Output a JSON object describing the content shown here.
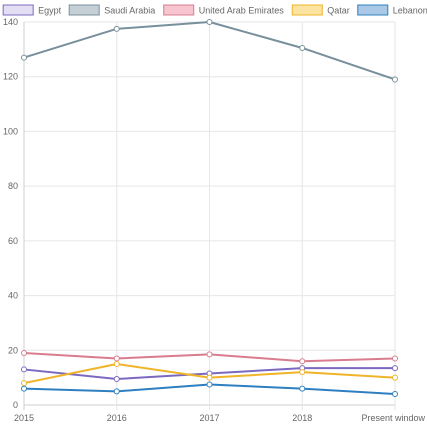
{
  "chart_data": {
    "type": "line",
    "title": "",
    "xlabel": "",
    "ylabel": "",
    "categories": [
      "2015",
      "2016",
      "2017",
      "2018",
      "Present window"
    ],
    "ylim": [
      0,
      140
    ],
    "y_ticks": [
      0,
      20,
      40,
      60,
      80,
      100,
      120,
      140
    ],
    "grid": true,
    "legend_position": "top",
    "series": [
      {
        "name": "Egypt",
        "values": [
          13,
          9.5,
          11.5,
          13.5,
          13.5
        ],
        "color": "#7b68c0",
        "fill": "#e3def4"
      },
      {
        "name": "Saudi Arabia",
        "values": [
          127,
          137.5,
          140,
          130.5,
          119
        ],
        "color": "#78909c",
        "fill": "#c5d0d6"
      },
      {
        "name": "United Arab Emirates",
        "values": [
          19,
          17,
          18.5,
          16,
          17
        ],
        "color": "#d87c8e",
        "fill": "#f6c5cf"
      },
      {
        "name": "Qatar",
        "values": [
          8,
          15,
          10,
          12,
          10
        ],
        "color": "#f0b429",
        "fill": "#fbe3a1"
      },
      {
        "name": "Lebanon",
        "values": [
          6,
          5,
          7.5,
          6,
          4
        ],
        "color": "#2e7fc1",
        "fill": "#aac9e6"
      }
    ]
  }
}
